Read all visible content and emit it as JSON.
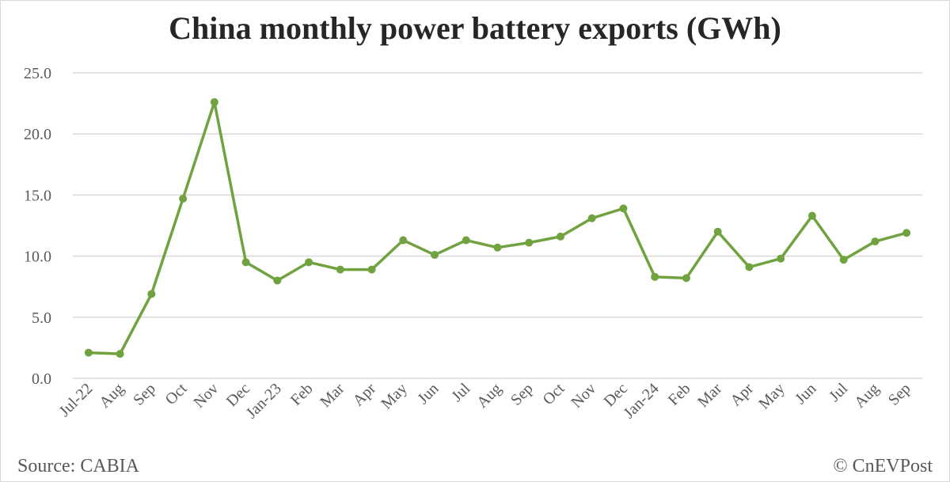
{
  "chart_data": {
    "type": "line",
    "title": "China monthly power battery exports (GWh)",
    "xlabel": "",
    "ylabel": "",
    "categories": [
      "Jul-22",
      "Aug",
      "Sep",
      "Oct",
      "Nov",
      "Dec",
      "Jan-23",
      "Feb",
      "Mar",
      "Apr",
      "May",
      "Jun",
      "Jul",
      "Aug",
      "Sep",
      "Oct",
      "Nov",
      "Dec",
      "Jan-24",
      "Feb",
      "Mar",
      "Apr",
      "May",
      "Jun",
      "Jul",
      "Aug",
      "Sep"
    ],
    "values": [
      2.1,
      2.0,
      6.9,
      14.7,
      22.6,
      9.5,
      8.0,
      9.5,
      8.9,
      8.9,
      11.3,
      10.1,
      11.3,
      10.7,
      11.1,
      11.6,
      13.1,
      13.9,
      8.3,
      8.2,
      12.0,
      9.1,
      9.8,
      13.3,
      9.7,
      11.2,
      11.9
    ],
    "ylim": [
      0,
      25
    ],
    "yticks": [
      "0.0",
      "5.0",
      "10.0",
      "15.0",
      "20.0",
      "25.0"
    ],
    "grid": true,
    "legend": "none",
    "line_color": "#70a340"
  },
  "footer": {
    "source": "Source: CABIA",
    "copyright": "© CnEVPost"
  }
}
